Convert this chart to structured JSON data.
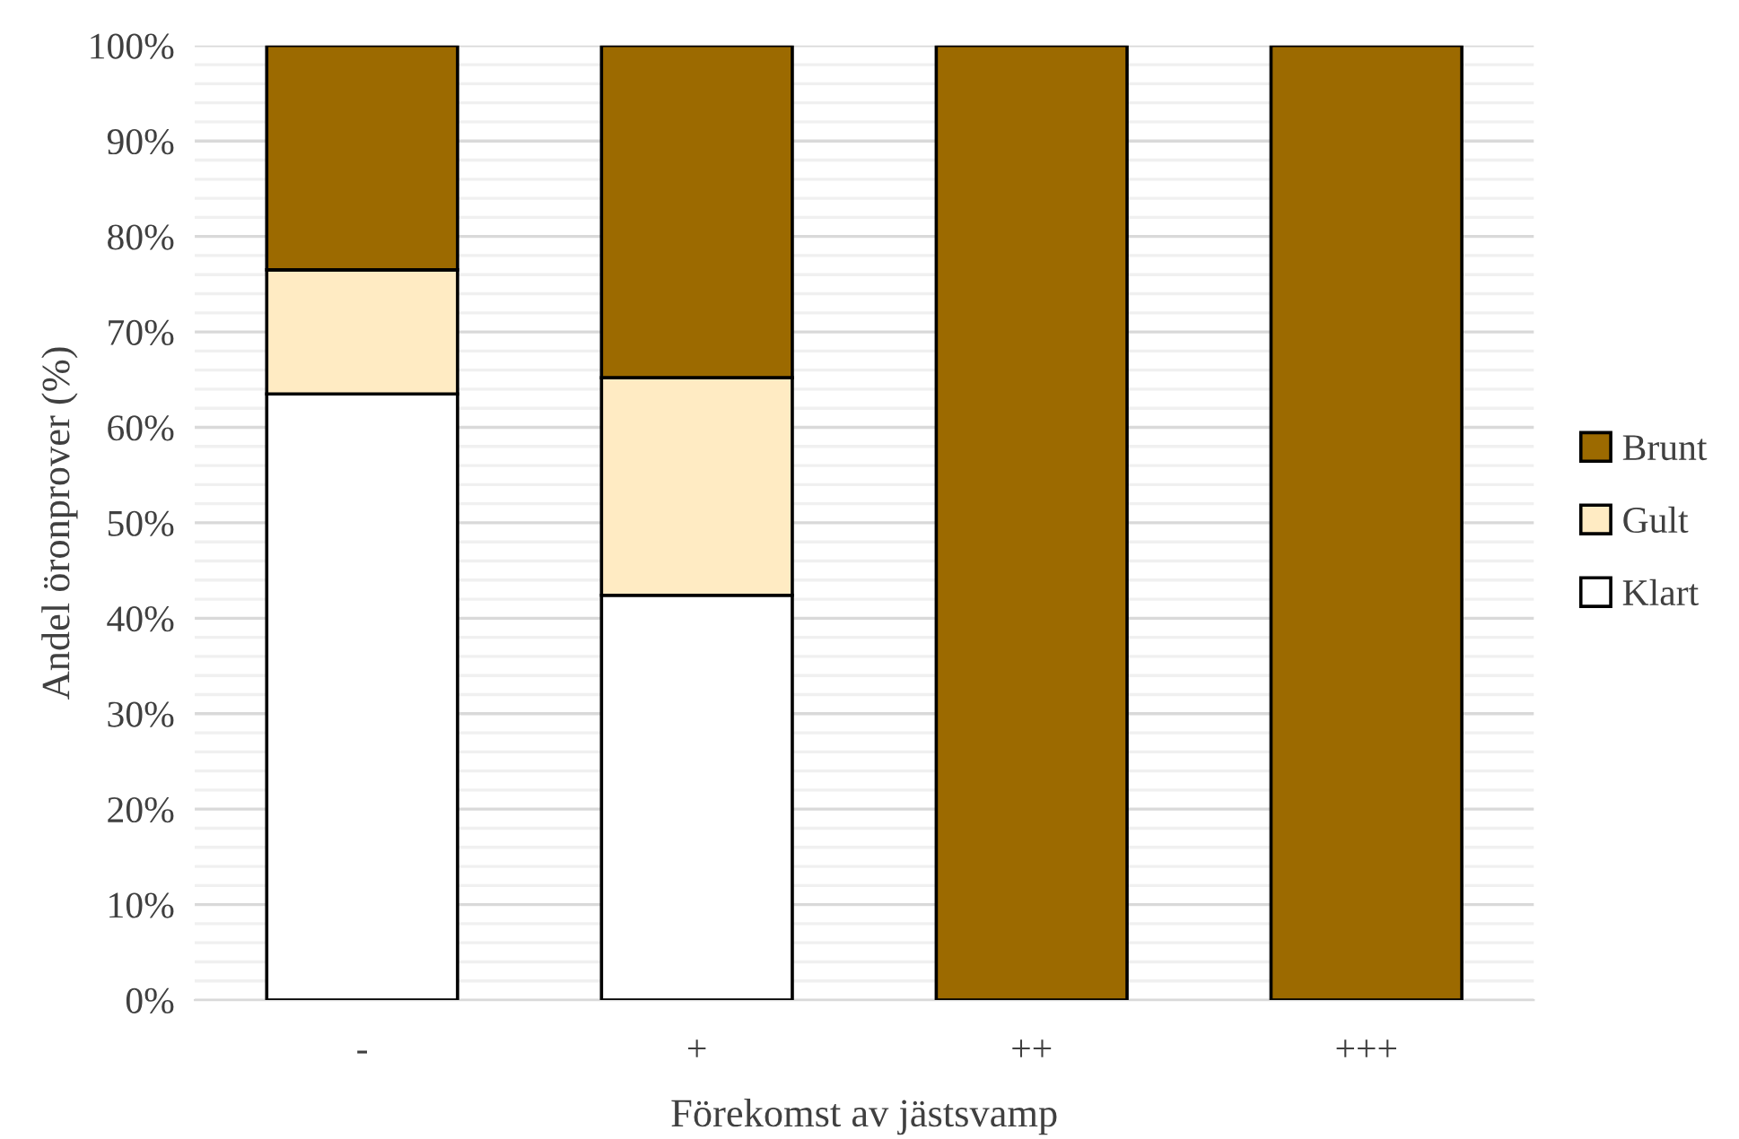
{
  "chart_data": {
    "type": "bar",
    "stacked": true,
    "xlabel": "Förekomst av jästsvamp",
    "ylabel": "Andel öronprover (%)",
    "categories": [
      "-",
      "+",
      "++",
      "+++"
    ],
    "series": [
      {
        "name": "Klart",
        "color": "#ffffff",
        "values": [
          63.5,
          42.4,
          0,
          0
        ]
      },
      {
        "name": "Gult",
        "color": "#ffebc3",
        "values": [
          13.0,
          22.8,
          0,
          0
        ]
      },
      {
        "name": "Brunt",
        "color": "#9c6a00",
        "values": [
          23.5,
          34.8,
          100,
          100
        ]
      }
    ],
    "ylim": [
      0,
      100
    ],
    "yticks": [
      {
        "value": 0,
        "label": "0%"
      },
      {
        "value": 2,
        "label": null
      },
      {
        "value": 4,
        "label": null
      },
      {
        "value": 6,
        "label": null
      },
      {
        "value": 8,
        "label": null
      },
      {
        "value": 10,
        "label": "10%"
      },
      {
        "value": 12,
        "label": null
      },
      {
        "value": 14,
        "label": null
      },
      {
        "value": 16,
        "label": null
      },
      {
        "value": 18,
        "label": null
      },
      {
        "value": 20,
        "label": "20%"
      },
      {
        "value": 22,
        "label": null
      },
      {
        "value": 24,
        "label": null
      },
      {
        "value": 26,
        "label": null
      },
      {
        "value": 28,
        "label": null
      },
      {
        "value": 30,
        "label": "30%"
      },
      {
        "value": 32,
        "label": null
      },
      {
        "value": 34,
        "label": null
      },
      {
        "value": 36,
        "label": null
      },
      {
        "value": 38,
        "label": null
      },
      {
        "value": 40,
        "label": "40%"
      },
      {
        "value": 42,
        "label": null
      },
      {
        "value": 44,
        "label": null
      },
      {
        "value": 46,
        "label": null
      },
      {
        "value": 48,
        "label": null
      },
      {
        "value": 50,
        "label": "50%"
      },
      {
        "value": 52,
        "label": null
      },
      {
        "value": 54,
        "label": null
      },
      {
        "value": 56,
        "label": null
      },
      {
        "value": 58,
        "label": null
      },
      {
        "value": 60,
        "label": "60%"
      },
      {
        "value": 62,
        "label": null
      },
      {
        "value": 64,
        "label": null
      },
      {
        "value": 66,
        "label": null
      },
      {
        "value": 68,
        "label": null
      },
      {
        "value": 70,
        "label": "70%"
      },
      {
        "value": 72,
        "label": null
      },
      {
        "value": 74,
        "label": null
      },
      {
        "value": 76,
        "label": null
      },
      {
        "value": 78,
        "label": null
      },
      {
        "value": 80,
        "label": "80%"
      },
      {
        "value": 82,
        "label": null
      },
      {
        "value": 84,
        "label": null
      },
      {
        "value": 86,
        "label": null
      },
      {
        "value": 88,
        "label": null
      },
      {
        "value": 90,
        "label": "90%"
      },
      {
        "value": 92,
        "label": null
      },
      {
        "value": 94,
        "label": null
      },
      {
        "value": 96,
        "label": null
      },
      {
        "value": 98,
        "label": null
      },
      {
        "value": 100,
        "label": "100%"
      }
    ],
    "grid": "y",
    "legend": "right"
  }
}
